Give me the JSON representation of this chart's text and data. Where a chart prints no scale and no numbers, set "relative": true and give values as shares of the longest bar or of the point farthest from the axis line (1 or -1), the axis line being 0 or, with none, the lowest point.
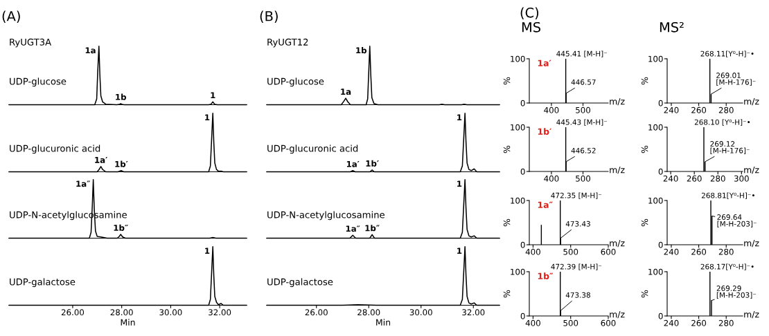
{
  "chart_data": [
    {
      "type": "line",
      "title": "(A)",
      "subtitle": "RyUGT3A",
      "relative": true,
      "xlim": [
        23.4,
        33.1
      ],
      "tick_labels": false,
      "annotations": [
        "UDP-glucose",
        {
          "text": "1a",
          "x": 27.07,
          "y": 1
        },
        {
          "text": "1b",
          "x": 27.96,
          "y": 0.02
        },
        {
          "text": "1",
          "x": 31.72,
          "y": 0.05
        }
      ],
      "series": [
        {
          "color": "#000000",
          "x": [
            23.4,
            26.9,
            26.98,
            27.02,
            27.07,
            27.11,
            27.15,
            27.22,
            27.35,
            27.8,
            27.9,
            27.96,
            28.02,
            28.1,
            31.55,
            31.65,
            31.72,
            31.79,
            31.9,
            33.1
          ],
          "values": [
            0,
            0,
            0.1,
            0.55,
            1,
            0.5,
            0.15,
            0.05,
            0.01,
            0,
            0.005,
            0.02,
            0.005,
            0,
            0,
            0.01,
            0.05,
            0.01,
            0,
            0
          ]
        }
      ]
    },
    {
      "type": "line",
      "relative": true,
      "xlim": [
        23.4,
        33.1
      ],
      "tick_labels": false,
      "annotations": [
        "UDP-glucuronic acid",
        {
          "text": "1a′",
          "x": 27.15,
          "y": 0.09
        },
        {
          "text": "1b′",
          "x": 27.98,
          "y": 0.02
        },
        {
          "text": "1",
          "x": 31.72,
          "y": 1
        }
      ],
      "series": [
        {
          "color": "#000000",
          "x": [
            23.4,
            27.0,
            27.08,
            27.15,
            27.22,
            27.35,
            27.85,
            27.98,
            28.08,
            31.55,
            31.62,
            31.67,
            31.72,
            31.76,
            31.8,
            31.87,
            31.95,
            32.05,
            32.15,
            33.1
          ],
          "values": [
            0,
            0,
            0.04,
            0.09,
            0.04,
            0,
            0,
            0.02,
            0,
            0,
            0.1,
            0.55,
            1,
            0.5,
            0.15,
            0.04,
            0.01,
            0.012,
            0,
            0
          ]
        }
      ]
    },
    {
      "type": "line",
      "relative": true,
      "xlim": [
        23.4,
        33.1
      ],
      "tick_labels": false,
      "annotations": [
        "UDP-N-acetylglucosamine",
        {
          "text": "1a″",
          "x": 26.84,
          "y": 1
        },
        {
          "text": "1b″",
          "x": 27.96,
          "y": 0.065
        }
      ],
      "series": [
        {
          "color": "#000000",
          "x": [
            23.4,
            26.68,
            26.75,
            26.8,
            26.84,
            26.88,
            26.93,
            27.0,
            27.15,
            27.4,
            27.82,
            27.9,
            27.96,
            28.04,
            28.15,
            31.6,
            31.72,
            31.85,
            33.1
          ],
          "values": [
            0,
            0,
            0.1,
            0.55,
            1,
            0.5,
            0.12,
            0.03,
            0.02,
            0,
            0,
            0.03,
            0.065,
            0.02,
            0,
            0,
            0.012,
            0,
            0
          ]
        }
      ]
    },
    {
      "type": "line",
      "relative": true,
      "xlim": [
        23.4,
        33.1
      ],
      "xticks": [
        {
          "value": 26,
          "label": "26.00"
        },
        {
          "value": 28,
          "label": "28.00"
        },
        {
          "value": 30,
          "label": "30.00"
        },
        {
          "value": 32,
          "label": "32.00"
        }
      ],
      "xlabel": "Min",
      "tick_labels": "x",
      "annotations": [
        "UDP-galactose",
        {
          "text": "1",
          "x": 31.72,
          "y": 1
        }
      ],
      "series": [
        {
          "color": "#000000",
          "x": [
            23.4,
            31.55,
            31.62,
            31.67,
            31.72,
            31.76,
            31.8,
            31.87,
            31.95,
            32.05,
            32.15,
            33.1
          ],
          "values": [
            0,
            0,
            0.1,
            0.55,
            1,
            0.5,
            0.15,
            0.05,
            0.01,
            0.03,
            0,
            0
          ]
        }
      ]
    },
    {
      "type": "line",
      "title": "(B)",
      "subtitle": "RyUGT12",
      "relative": true,
      "xlim": [
        24.1,
        33.0
      ],
      "tick_labels": false,
      "annotations": [
        "UDP-glucose",
        {
          "text": "1a",
          "x": 27.12,
          "y": 0.11
        },
        {
          "text": "1b",
          "x": 28.04,
          "y": 1
        }
      ],
      "series": [
        {
          "color": "#000000",
          "x": [
            24.1,
            26.95,
            27.05,
            27.12,
            27.2,
            27.3,
            27.9,
            27.96,
            28.0,
            28.04,
            28.08,
            28.12,
            28.2,
            28.35,
            30.7,
            30.8,
            30.9,
            31.55,
            31.65,
            31.75,
            33.0
          ],
          "values": [
            0,
            0,
            0.06,
            0.11,
            0.05,
            0,
            0,
            0.1,
            0.55,
            1,
            0.5,
            0.12,
            0.02,
            0,
            0,
            0.01,
            0,
            0,
            0.01,
            0,
            0
          ]
        }
      ]
    },
    {
      "type": "line",
      "relative": true,
      "xlim": [
        24.1,
        33.0
      ],
      "tick_labels": false,
      "annotations": [
        "UDP-glucuronic acid",
        {
          "text": "1a′",
          "x": 27.39,
          "y": 0.02
        },
        {
          "text": "1b′",
          "x": 28.13,
          "y": 0.03
        },
        {
          "text": "1",
          "x": 31.68,
          "y": 1
        }
      ],
      "series": [
        {
          "color": "#000000",
          "x": [
            24.1,
            27.3,
            27.39,
            27.48,
            28.05,
            28.13,
            28.21,
            31.5,
            31.58,
            31.63,
            31.68,
            31.72,
            31.76,
            31.83,
            31.92,
            32.03,
            32.13,
            33.0
          ],
          "values": [
            0,
            0,
            0.02,
            0,
            0,
            0.03,
            0,
            0,
            0.1,
            0.55,
            1,
            0.5,
            0.15,
            0.04,
            0.02,
            0.05,
            0,
            0
          ]
        }
      ]
    },
    {
      "type": "line",
      "relative": true,
      "xlim": [
        24.1,
        33.0
      ],
      "tick_labels": false,
      "annotations": [
        "UDP-N-acetylglucosamine",
        {
          "text": "1a″",
          "x": 27.39,
          "y": 0.05
        },
        {
          "text": "1b″",
          "x": 28.13,
          "y": 0.06
        },
        {
          "text": "1",
          "x": 31.68,
          "y": 1
        }
      ],
      "series": [
        {
          "color": "#000000",
          "x": [
            24.1,
            27.28,
            27.39,
            27.5,
            28.04,
            28.13,
            28.22,
            31.5,
            31.58,
            31.63,
            31.68,
            31.72,
            31.76,
            31.83,
            31.92,
            32.03,
            32.13,
            33.0
          ],
          "values": [
            0,
            0,
            0.05,
            0,
            0,
            0.06,
            0,
            0,
            0.1,
            0.55,
            1,
            0.5,
            0.15,
            0.04,
            0.02,
            0.04,
            0,
            0
          ]
        }
      ]
    },
    {
      "type": "line",
      "relative": true,
      "xlim": [
        24.1,
        33.0
      ],
      "xticks": [
        {
          "value": 26,
          "label": "26.00"
        },
        {
          "value": 28,
          "label": "28.00"
        },
        {
          "value": 30,
          "label": "30.00"
        },
        {
          "value": 32,
          "label": "32.00"
        }
      ],
      "xlabel": "Min",
      "tick_labels": "x",
      "annotations": [
        "UDP-galactose",
        {
          "text": "1",
          "x": 31.68,
          "y": 1
        }
      ],
      "series": [
        {
          "color": "#000000",
          "x": [
            24.1,
            27.0,
            27.6,
            28.3,
            31.5,
            31.58,
            31.63,
            31.68,
            31.72,
            31.76,
            31.83,
            31.92,
            32.03,
            32.13,
            33.0
          ],
          "values": [
            0,
            0,
            0.01,
            0,
            0,
            0.1,
            0.55,
            1,
            0.5,
            0.15,
            0.04,
            0.02,
            0.04,
            0,
            0
          ]
        }
      ]
    },
    {
      "type": "bar",
      "title": "(C)",
      "subtitle": "MS",
      "xlim": [
        330,
        580
      ],
      "xticks": [
        400,
        500
      ],
      "ylim": [
        0,
        100
      ],
      "yticks": [
        0,
        100
      ],
      "xlabel": "m/z",
      "ylabel": "%",
      "annotations": [
        "1a′",
        {
          "text": "445.41 [M-H]⁻",
          "x": 445.41,
          "y": 100
        },
        {
          "text": "446.57",
          "x": 446.57,
          "y": 22
        }
      ],
      "series": [
        {
          "color": "#000000",
          "x": [
            445.41,
            446.57
          ],
          "values": [
            100,
            22
          ]
        }
      ]
    },
    {
      "type": "bar",
      "title": "MS²",
      "xlim": [
        237,
        292
      ],
      "xticks": [
        240,
        260,
        280
      ],
      "ylim": [
        0,
        100
      ],
      "yticks": [
        0,
        100
      ],
      "xlabel": "m/z",
      "ylabel": "%",
      "annotations": [
        {
          "text": "268.11[Y⁰-H]⁻•",
          "x": 268.11,
          "y": 100
        },
        {
          "text": "269.01\n[M-H-176]⁻",
          "x": 269.01,
          "y": 20
        }
      ],
      "series": [
        {
          "color": "#000000",
          "x": [
            268.11,
            269.01
          ],
          "values": [
            100,
            20
          ]
        }
      ]
    },
    {
      "type": "bar",
      "xlim": [
        330,
        580
      ],
      "xticks": [
        400,
        500
      ],
      "ylim": [
        0,
        100
      ],
      "yticks": [
        0,
        100
      ],
      "xlabel": "m/z",
      "ylabel": "%",
      "annotations": [
        "1b′",
        {
          "text": "445.43 [M-H]⁻",
          "x": 445.43,
          "y": 100
        },
        {
          "text": "446.52",
          "x": 446.52,
          "y": 22
        }
      ],
      "series": [
        {
          "color": "#000000",
          "x": [
            445.43,
            446.52
          ],
          "values": [
            100,
            22
          ]
        }
      ]
    },
    {
      "type": "bar",
      "xlim": [
        237,
        301
      ],
      "xticks": [
        240,
        260,
        280,
        300
      ],
      "ylim": [
        0,
        100
      ],
      "yticks": [
        0,
        100
      ],
      "xlabel": "m/z",
      "ylabel": "%",
      "annotations": [
        {
          "text": "268.10 [Y⁰-H]⁻•",
          "x": 268.1,
          "y": 100
        },
        {
          "text": "269.12\n[M-H-176]⁻",
          "x": 269.12,
          "y": 22
        }
      ],
      "series": [
        {
          "color": "#000000",
          "x": [
            268.1,
            269.12
          ],
          "values": [
            100,
            22
          ]
        }
      ]
    },
    {
      "type": "bar",
      "xlim": [
        390,
        600
      ],
      "xticks": [
        400,
        500,
        600
      ],
      "ylim": [
        0,
        100
      ],
      "yticks": [
        0,
        100
      ],
      "xlabel": "m/z",
      "ylabel": "%",
      "annotations": [
        "1a″",
        {
          "text": "472.35 [M-H]⁻",
          "x": 472.35,
          "y": 100
        },
        {
          "text": "473.43",
          "x": 473.43,
          "y": 15
        }
      ],
      "series": [
        {
          "color": "#000000",
          "x": [
            422,
            472.35,
            473.43
          ],
          "values": [
            45,
            100,
            15
          ]
        }
      ]
    },
    {
      "type": "bar",
      "xlim": [
        237,
        292
      ],
      "xticks": [
        240,
        260,
        280
      ],
      "ylim": [
        0,
        100
      ],
      "yticks": [
        0,
        100
      ],
      "xlabel": "m/z",
      "ylabel": "%",
      "annotations": [
        {
          "text": "268.81[Y⁰-H]⁻•",
          "x": 268.81,
          "y": 100
        },
        {
          "text": "269.64\n[M-H-203]⁻",
          "x": 269.64,
          "y": 65
        }
      ],
      "series": [
        {
          "color": "#000000",
          "x": [
            268.81,
            269.64
          ],
          "values": [
            100,
            65
          ]
        }
      ]
    },
    {
      "type": "bar",
      "xlim": [
        390,
        600
      ],
      "xticks": [
        400,
        500,
        600
      ],
      "ylim": [
        0,
        100
      ],
      "yticks": [
        0,
        100
      ],
      "xlabel": "m/z",
      "ylabel": "%",
      "annotations": [
        "1b″",
        {
          "text": "472.39 [M-H]⁻",
          "x": 472.39,
          "y": 100
        },
        {
          "text": "473.38",
          "x": 473.38,
          "y": 12
        }
      ],
      "series": [
        {
          "color": "#000000",
          "x": [
            472.39,
            473.38
          ],
          "values": [
            100,
            12
          ]
        }
      ]
    },
    {
      "type": "bar",
      "xlim": [
        237,
        292
      ],
      "xticks": [
        240,
        260,
        280
      ],
      "ylim": [
        0,
        100
      ],
      "yticks": [
        0,
        100
      ],
      "xlabel": "m/z",
      "ylabel": "%",
      "annotations": [
        {
          "text": "268.17[Y⁰-H]⁻•",
          "x": 268.17,
          "y": 100
        },
        {
          "text": "269.29\n[M-H-203]⁻",
          "x": 269.29,
          "y": 35
        }
      ],
      "series": [
        {
          "color": "#000000",
          "x": [
            268.17,
            269.29
          ],
          "values": [
            100,
            35
          ]
        }
      ]
    }
  ]
}
